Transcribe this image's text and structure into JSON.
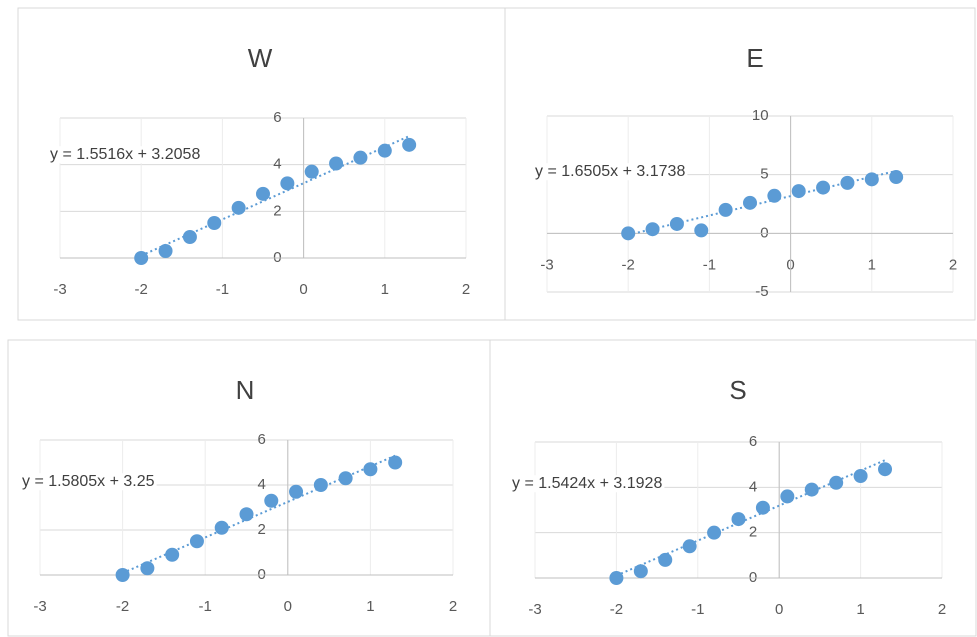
{
  "chart_data": [
    {
      "type": "scatter",
      "title": "W",
      "x": [
        -2,
        -1.7,
        -1.4,
        -1.1,
        -0.8,
        -0.5,
        -0.2,
        0.1,
        0.4,
        0.7,
        1.0,
        1.3
      ],
      "values": [
        0,
        0.3,
        0.9,
        1.5,
        2.15,
        2.75,
        3.2,
        3.7,
        4.05,
        4.3,
        4.6,
        4.85
      ],
      "color": "#5b9bd5",
      "xlim": [
        -3,
        2
      ],
      "ylim": [
        0,
        6
      ],
      "xticks": [
        -3,
        -2,
        -1,
        0,
        1,
        2
      ],
      "yticks": [
        0,
        2,
        4,
        6
      ],
      "grid": true,
      "trendline": {
        "label": "y = 1.5516x + 3.2058",
        "slope": 1.5516,
        "intercept": 3.2058
      }
    },
    {
      "type": "scatter",
      "title": "E",
      "x": [
        -2,
        -1.7,
        -1.4,
        -1.1,
        -0.8,
        -0.5,
        -0.2,
        0.1,
        0.4,
        0.7,
        1.0,
        1.3
      ],
      "values": [
        0,
        0.35,
        0.8,
        0.25,
        2.0,
        2.6,
        3.2,
        3.6,
        3.9,
        4.3,
        4.6,
        4.8
      ],
      "color": "#5b9bd5",
      "xlim": [
        -3,
        2
      ],
      "ylim": [
        -5,
        10
      ],
      "xticks": [
        -3,
        -2,
        -1,
        0,
        1,
        2
      ],
      "yticks": [
        -5,
        0,
        5,
        10
      ],
      "grid": true,
      "trendline": {
        "label": "y = 1.6505x + 3.1738",
        "slope": 1.6505,
        "intercept": 3.1738
      }
    },
    {
      "type": "scatter",
      "title": "N",
      "x": [
        -2,
        -1.7,
        -1.4,
        -1.1,
        -0.8,
        -0.5,
        -0.2,
        0.1,
        0.4,
        0.7,
        1.0,
        1.3
      ],
      "values": [
        0,
        0.3,
        0.9,
        1.5,
        2.1,
        2.7,
        3.3,
        3.7,
        4.0,
        4.3,
        4.7,
        5.0
      ],
      "color": "#5b9bd5",
      "xlim": [
        -3,
        2
      ],
      "ylim": [
        0,
        6
      ],
      "xticks": [
        -3,
        -2,
        -1,
        0,
        1,
        2
      ],
      "yticks": [
        0,
        2,
        4,
        6
      ],
      "grid": true,
      "trendline": {
        "label": "y = 1.5805x + 3.25",
        "slope": 1.5805,
        "intercept": 3.25
      }
    },
    {
      "type": "scatter",
      "title": "S",
      "x": [
        -2,
        -1.7,
        -1.4,
        -1.1,
        -0.8,
        -0.5,
        -0.2,
        0.1,
        0.4,
        0.7,
        1.0,
        1.3
      ],
      "values": [
        0,
        0.3,
        0.8,
        1.4,
        2.0,
        2.6,
        3.1,
        3.6,
        3.9,
        4.2,
        4.5,
        4.8
      ],
      "color": "#5b9bd5",
      "xlim": [
        -3,
        2
      ],
      "ylim": [
        0,
        6
      ],
      "xticks": [
        -3,
        -2,
        -1,
        0,
        1,
        2
      ],
      "yticks": [
        0,
        2,
        4,
        6
      ],
      "grid": true,
      "trendline": {
        "label": "y = 1.5424x + 3.1928",
        "slope": 1.5424,
        "intercept": 3.1928
      }
    }
  ]
}
